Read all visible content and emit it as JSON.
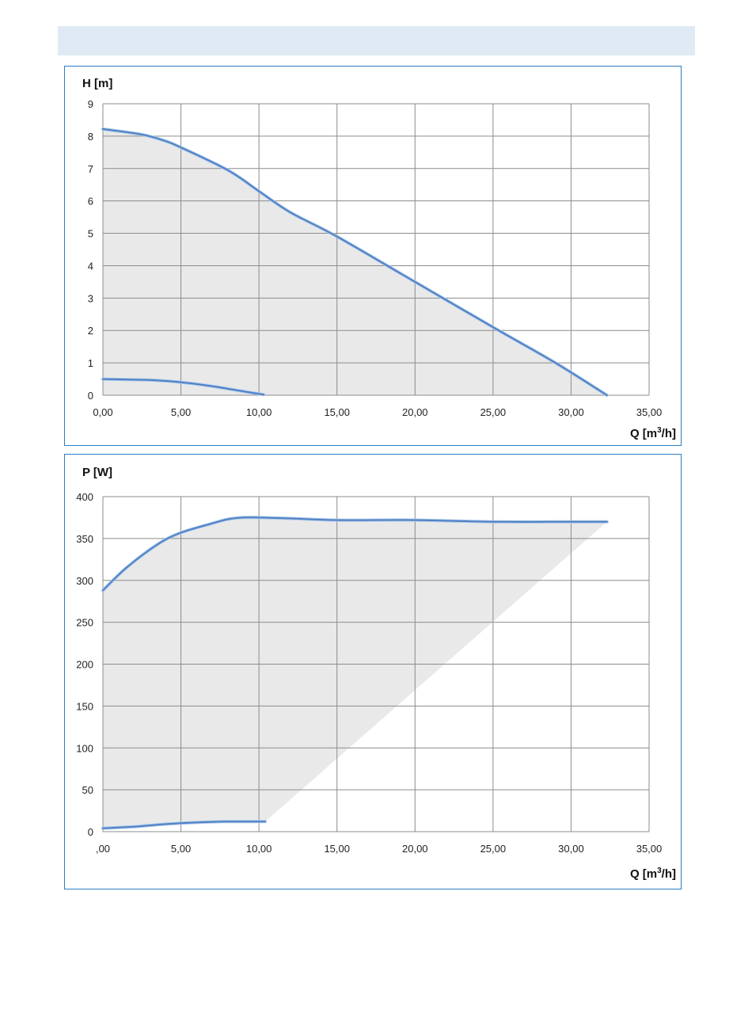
{
  "chart_data": [
    {
      "type": "area",
      "ylabel": "H [m]",
      "xlabel_prefix": "Q [m",
      "xlabel_sup": "3",
      "xlabel_suffix": "/h]",
      "xlim": [
        0,
        35
      ],
      "ylim": [
        0,
        9
      ],
      "x_ticks": [
        "0,00",
        "5,00",
        "10,00",
        "15,00",
        "20,00",
        "25,00",
        "30,00",
        "35,00"
      ],
      "y_ticks": [
        "0",
        "1",
        "2",
        "3",
        "4",
        "5",
        "6",
        "7",
        "8",
        "9"
      ],
      "grid": true,
      "colors": {
        "line": "#4f81c4",
        "area": "#e9e9e9",
        "grid": "#8c8c8c"
      },
      "series": [
        {
          "x": [
            0,
            2.5,
            4,
            5,
            8,
            10,
            12,
            15,
            20,
            25,
            29,
            32.3
          ],
          "values": [
            8.22,
            8.05,
            7.85,
            7.65,
            6.95,
            6.3,
            5.65,
            4.9,
            3.5,
            2.1,
            1.0,
            0
          ]
        },
        {
          "x": [
            0,
            2,
            3,
            5,
            7,
            9,
            10.3
          ],
          "values": [
            0.5,
            0.48,
            0.47,
            0.4,
            0.28,
            0.12,
            0.02
          ]
        }
      ]
    },
    {
      "type": "area",
      "ylabel": "P [W]",
      "xlabel_prefix": "Q [m",
      "xlabel_sup": "3",
      "xlabel_suffix": "/h]",
      "xlim": [
        0,
        35
      ],
      "ylim": [
        0,
        400
      ],
      "x_ticks": [
        ",00",
        "5,00",
        "10,00",
        "15,00",
        "20,00",
        "25,00",
        "30,00",
        "35,00"
      ],
      "y_ticks": [
        "0",
        "50",
        "100",
        "150",
        "200",
        "250",
        "300",
        "350",
        "400"
      ],
      "grid": true,
      "colors": {
        "line": "#4f81c4",
        "area": "#e9e9e9",
        "grid": "#8c8c8c"
      },
      "series": [
        {
          "x": [
            0,
            1.5,
            3.5,
            5,
            7,
            8,
            9,
            10,
            12,
            15,
            20,
            25,
            30,
            32.3
          ],
          "values": [
            288,
            315,
            343,
            357,
            368,
            373,
            375,
            375,
            374,
            372,
            372,
            370,
            370,
            370
          ]
        },
        {
          "x": [
            0,
            2,
            4,
            6,
            8,
            10,
            10.4
          ],
          "values": [
            4,
            6,
            9,
            11,
            12,
            12,
            12
          ]
        }
      ]
    }
  ]
}
